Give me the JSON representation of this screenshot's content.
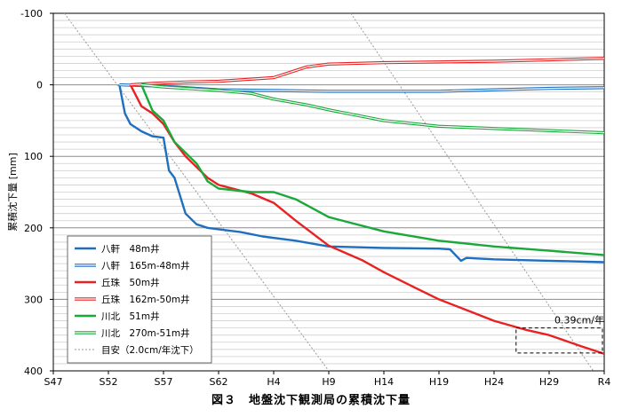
{
  "caption": "図３　地盤沈下観測局の累積沈下量",
  "chart_data": {
    "type": "line",
    "title": "",
    "ylabel": "累積沈下量 [mm]",
    "xlabel": "",
    "x_ticks": [
      "S47",
      "S52",
      "S57",
      "S62",
      "H4",
      "H9",
      "H14",
      "H19",
      "H24",
      "H29",
      "R4"
    ],
    "y_ticks": [
      -100,
      0,
      100,
      200,
      300,
      400
    ],
    "ylim": [
      400,
      -100
    ],
    "y_inverted": true,
    "grid": true,
    "grid_minor_step": 10,
    "legend_position": "bottom-left",
    "annotation": "0.39cm/年",
    "series": [
      {
        "name": "八軒　48m井",
        "color": "#1f6fc0",
        "style": "thick",
        "points": [
          [
            "S53",
            0
          ],
          [
            "S53.5",
            40
          ],
          [
            "S54",
            55
          ],
          [
            "S55",
            65
          ],
          [
            "S56",
            72
          ],
          [
            "S57",
            74
          ],
          [
            "S57.5",
            120
          ],
          [
            "S58",
            130
          ],
          [
            "S59",
            180
          ],
          [
            "S60",
            195
          ],
          [
            "S61",
            200
          ],
          [
            "S62",
            202
          ],
          [
            "H1",
            206
          ],
          [
            "H3",
            212
          ],
          [
            "H6",
            218
          ],
          [
            "H9",
            226
          ],
          [
            "H14",
            228
          ],
          [
            "H19",
            229
          ],
          [
            "H20",
            230
          ],
          [
            "H21",
            246
          ],
          [
            "H21.5",
            242
          ],
          [
            "H24",
            244
          ],
          [
            "H29",
            246
          ],
          [
            "R4",
            248
          ]
        ]
      },
      {
        "name": "八軒　165m-48m井",
        "color": "#1f6fc0",
        "style": "double",
        "points": [
          [
            "S53",
            0
          ],
          [
            "S55",
            1
          ],
          [
            "S57",
            2
          ],
          [
            "S59",
            4
          ],
          [
            "S62",
            7
          ],
          [
            "H4",
            8
          ],
          [
            "H9",
            9
          ],
          [
            "H14",
            9
          ],
          [
            "H19",
            9
          ],
          [
            "H24",
            7
          ],
          [
            "H29",
            5
          ],
          [
            "R4",
            4
          ]
        ]
      },
      {
        "name": "丘珠　50m井",
        "color": "#e82222",
        "style": "thick",
        "points": [
          [
            "S54",
            0
          ],
          [
            "S55",
            30
          ],
          [
            "S56",
            40
          ],
          [
            "S57",
            55
          ],
          [
            "S58",
            80
          ],
          [
            "S59",
            100
          ],
          [
            "S60",
            115
          ],
          [
            "S61",
            130
          ],
          [
            "S62",
            140
          ],
          [
            "H2",
            152
          ],
          [
            "H4",
            165
          ],
          [
            "H6",
            190
          ],
          [
            "H9",
            225
          ],
          [
            "H12",
            245
          ],
          [
            "H14",
            262
          ],
          [
            "H17",
            285
          ],
          [
            "H19",
            300
          ],
          [
            "H22",
            318
          ],
          [
            "H24",
            330
          ],
          [
            "H27",
            343
          ],
          [
            "H29",
            350
          ],
          [
            "H32",
            366
          ],
          [
            "R4",
            376
          ]
        ]
      },
      {
        "name": "丘珠　162m-50m井",
        "color": "#e82222",
        "style": "double",
        "points": [
          [
            "S54",
            0
          ],
          [
            "S56",
            -2
          ],
          [
            "S59",
            -4
          ],
          [
            "S62",
            -5
          ],
          [
            "H4",
            -10
          ],
          [
            "H7",
            -25
          ],
          [
            "H9",
            -29
          ],
          [
            "H14",
            -31
          ],
          [
            "H19",
            -32
          ],
          [
            "H24",
            -33
          ],
          [
            "H29",
            -35
          ],
          [
            "R4",
            -37
          ]
        ]
      },
      {
        "name": "川北　51m井",
        "color": "#1aa83a",
        "style": "thick",
        "points": [
          [
            "S55",
            0
          ],
          [
            "S56",
            36
          ],
          [
            "S57",
            50
          ],
          [
            "S58",
            80
          ],
          [
            "S59",
            95
          ],
          [
            "S60",
            110
          ],
          [
            "S61",
            135
          ],
          [
            "S62",
            145
          ],
          [
            "H2",
            150
          ],
          [
            "H4",
            150
          ],
          [
            "H6",
            160
          ],
          [
            "H9",
            185
          ],
          [
            "H14",
            205
          ],
          [
            "H19",
            218
          ],
          [
            "H24",
            226
          ],
          [
            "H29",
            232
          ],
          [
            "R4",
            238
          ]
        ]
      },
      {
        "name": "川北　270m-51m井",
        "color": "#1aa83a",
        "style": "double",
        "points": [
          [
            "S55",
            0
          ],
          [
            "S57",
            3
          ],
          [
            "S59",
            5
          ],
          [
            "S62",
            8
          ],
          [
            "H2",
            12
          ],
          [
            "H4",
            20
          ],
          [
            "H7",
            28
          ],
          [
            "H9",
            35
          ],
          [
            "H14",
            50
          ],
          [
            "H19",
            58
          ],
          [
            "H24",
            61
          ],
          [
            "H29",
            64
          ],
          [
            "R4",
            67
          ]
        ]
      },
      {
        "name": "目安（2.0cm/年沈下）",
        "color": "#9a9a9a",
        "style": "dotted",
        "guides": [
          [
            "S48",
            -100,
            "H9",
            400
          ],
          [
            "H11",
            -100,
            "R3",
            400
          ]
        ]
      }
    ]
  }
}
